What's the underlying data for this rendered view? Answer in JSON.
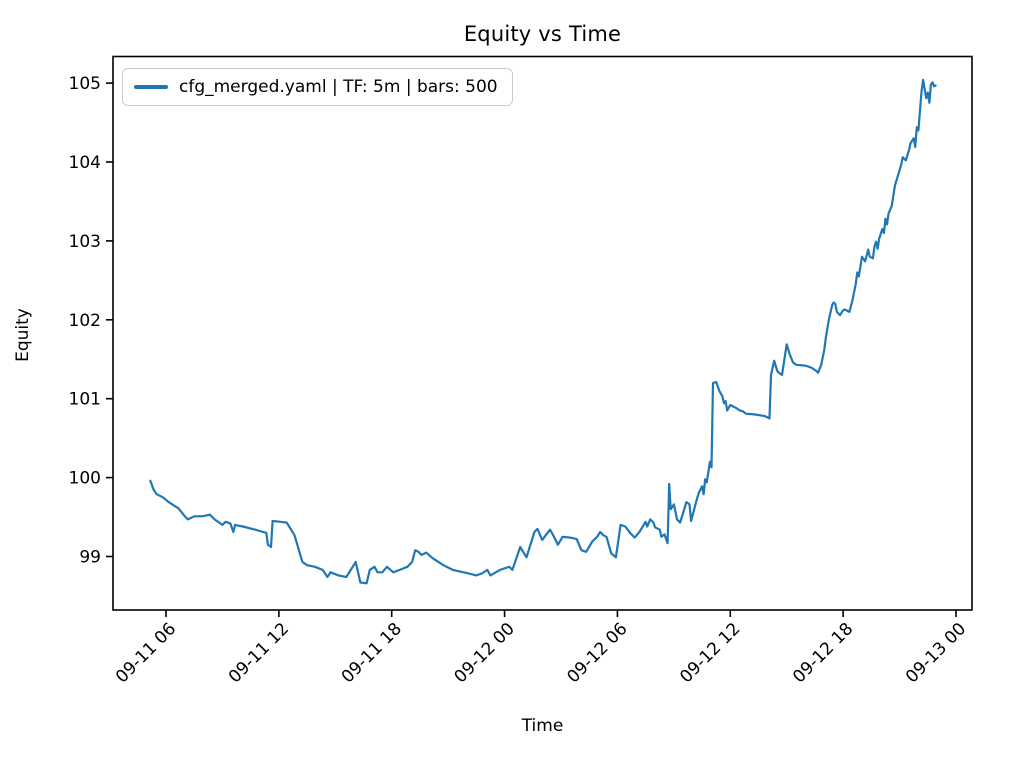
{
  "figure": {
    "title": "Equity vs Time",
    "x_label": "Time",
    "y_label": "Equity"
  },
  "legend": {
    "label": "cfg_merged.yaml | TF: 5m | bars: 500",
    "config_file": "cfg_merged.yaml",
    "timeframe": "5m",
    "bars": 500
  },
  "colors": {
    "line": "#1f77b4",
    "spine": "#000000",
    "tick_text": "#000000",
    "legend_border": "#cccccc",
    "background": "#ffffff"
  },
  "chart_data": {
    "type": "line",
    "title": "Equity vs Time",
    "xlabel": "Time",
    "ylabel": "Equity",
    "grid": false,
    "legend_position": "upper left",
    "series_name": "cfg_merged.yaml | TF: 5m | bars: 500",
    "y_ticks": [
      99,
      100,
      101,
      102,
      103,
      104,
      105
    ],
    "ylim": [
      98.32,
      105.34
    ],
    "x_tick_labels": [
      "09-11 06",
      "09-11 12",
      "09-11 18",
      "09-12 00",
      "09-12 06",
      "09-12 12",
      "09-12 18",
      "09-13 00"
    ],
    "x_tick_hours": [
      6,
      12,
      18,
      24,
      30,
      36,
      42,
      48
    ],
    "xlim_hours": [
      3.18,
      48.82
    ],
    "x_tick_rotation_deg": 45,
    "points": [
      [
        "09-11 05:10",
        99.96
      ],
      [
        "09-11 05:20",
        99.85
      ],
      [
        "09-11 05:30",
        99.79
      ],
      [
        "09-11 05:50",
        99.75
      ],
      [
        "09-11 06:05",
        99.7
      ],
      [
        "09-11 06:20",
        99.66
      ],
      [
        "09-11 06:40",
        99.61
      ],
      [
        "09-11 06:50",
        99.56
      ],
      [
        "09-11 07:00",
        99.51
      ],
      [
        "09-11 07:10",
        99.47
      ],
      [
        "09-11 07:30",
        99.51
      ],
      [
        "09-11 07:55",
        99.51
      ],
      [
        "09-11 08:20",
        99.53
      ],
      [
        "09-11 08:35",
        99.47
      ],
      [
        "09-11 09:00",
        99.4
      ],
      [
        "09-11 09:10",
        99.44
      ],
      [
        "09-11 09:25",
        99.42
      ],
      [
        "09-11 09:35",
        99.31
      ],
      [
        "09-11 09:40",
        99.4
      ],
      [
        "09-11 10:05",
        99.38
      ],
      [
        "09-11 10:45",
        99.34
      ],
      [
        "09-11 11:10",
        99.31
      ],
      [
        "09-11 11:20",
        99.3
      ],
      [
        "09-11 11:25",
        99.15
      ],
      [
        "09-11 11:35",
        99.12
      ],
      [
        "09-11 11:40",
        99.45
      ],
      [
        "09-11 12:05",
        99.44
      ],
      [
        "09-11 12:25",
        99.43
      ],
      [
        "09-11 12:50",
        99.27
      ],
      [
        "09-11 13:15",
        98.93
      ],
      [
        "09-11 13:30",
        98.89
      ],
      [
        "09-11 13:55",
        98.87
      ],
      [
        "09-11 14:20",
        98.83
      ],
      [
        "09-11 14:35",
        98.74
      ],
      [
        "09-11 14:45",
        98.8
      ],
      [
        "09-11 15:10",
        98.76
      ],
      [
        "09-11 15:35",
        98.74
      ],
      [
        "09-11 16:05",
        98.93
      ],
      [
        "09-11 16:20",
        98.67
      ],
      [
        "09-11 16:40",
        98.66
      ],
      [
        "09-11 16:50",
        98.83
      ],
      [
        "09-11 17:05",
        98.87
      ],
      [
        "09-11 17:15",
        98.8
      ],
      [
        "09-11 17:30",
        98.8
      ],
      [
        "09-11 17:45",
        98.87
      ],
      [
        "09-11 18:05",
        98.8
      ],
      [
        "09-11 18:25",
        98.83
      ],
      [
        "09-11 18:50",
        98.87
      ],
      [
        "09-11 19:05",
        98.93
      ],
      [
        "09-11 19:15",
        99.08
      ],
      [
        "09-11 19:25",
        99.06
      ],
      [
        "09-11 19:35",
        99.02
      ],
      [
        "09-11 19:50",
        99.05
      ],
      [
        "09-11 20:10",
        98.98
      ],
      [
        "09-11 20:45",
        98.89
      ],
      [
        "09-11 21:15",
        98.83
      ],
      [
        "09-11 22:00",
        98.79
      ],
      [
        "09-11 22:30",
        98.76
      ],
      [
        "09-11 22:50",
        98.79
      ],
      [
        "09-11 23:05",
        98.83
      ],
      [
        "09-11 23:15",
        98.76
      ],
      [
        "09-11 23:45",
        98.83
      ],
      [
        "09-12 00:15",
        98.87
      ],
      [
        "09-12 00:25",
        98.83
      ],
      [
        "09-12 00:50",
        99.12
      ],
      [
        "09-12 01:10",
        98.99
      ],
      [
        "09-12 01:35",
        99.31
      ],
      [
        "09-12 01:45",
        99.35
      ],
      [
        "09-12 02:00",
        99.21
      ],
      [
        "09-12 02:25",
        99.34
      ],
      [
        "09-12 02:35",
        99.27
      ],
      [
        "09-12 02:50",
        99.15
      ],
      [
        "09-12 03:05",
        99.25
      ],
      [
        "09-12 03:30",
        99.24
      ],
      [
        "09-12 03:50",
        99.22
      ],
      [
        "09-12 04:05",
        99.08
      ],
      [
        "09-12 04:20",
        99.06
      ],
      [
        "09-12 04:40",
        99.19
      ],
      [
        "09-12 04:55",
        99.25
      ],
      [
        "09-12 05:05",
        99.31
      ],
      [
        "09-12 05:15",
        99.27
      ],
      [
        "09-12 05:25",
        99.25
      ],
      [
        "09-12 05:40",
        99.04
      ],
      [
        "09-12 05:55",
        98.99
      ],
      [
        "09-12 06:10",
        99.4
      ],
      [
        "09-12 06:25",
        99.38
      ],
      [
        "09-12 06:40",
        99.3
      ],
      [
        "09-12 06:55",
        99.24
      ],
      [
        "09-12 07:10",
        99.31
      ],
      [
        "09-12 07:30",
        99.44
      ],
      [
        "09-12 07:35",
        99.38
      ],
      [
        "09-12 07:45",
        99.47
      ],
      [
        "09-12 07:55",
        99.43
      ],
      [
        "09-12 08:00",
        99.37
      ],
      [
        "09-12 08:15",
        99.34
      ],
      [
        "09-12 08:20",
        99.25
      ],
      [
        "09-12 08:30",
        99.28
      ],
      [
        "09-12 08:40",
        99.17
      ],
      [
        "09-12 08:45",
        99.92
      ],
      [
        "09-12 08:50",
        99.6
      ],
      [
        "09-12 09:00",
        99.66
      ],
      [
        "09-12 09:05",
        99.57
      ],
      [
        "09-12 09:10",
        99.47
      ],
      [
        "09-12 09:20",
        99.43
      ],
      [
        "09-12 09:30",
        99.56
      ],
      [
        "09-12 09:40",
        99.69
      ],
      [
        "09-12 09:50",
        99.66
      ],
      [
        "09-12 09:55",
        99.45
      ],
      [
        "09-12 10:05",
        99.6
      ],
      [
        "09-12 10:15",
        99.75
      ],
      [
        "09-12 10:20",
        99.81
      ],
      [
        "09-12 10:30",
        99.89
      ],
      [
        "09-12 10:35",
        99.79
      ],
      [
        "09-12 10:40",
        99.98
      ],
      [
        "09-12 10:45",
        99.94
      ],
      [
        "09-12 10:55",
        100.2
      ],
      [
        "09-12 11:00",
        100.13
      ],
      [
        "09-12 11:05",
        101.2
      ],
      [
        "09-12 11:15",
        101.21
      ],
      [
        "09-12 11:25",
        101.1
      ],
      [
        "09-12 11:35",
        101.03
      ],
      [
        "09-12 11:40",
        100.94
      ],
      [
        "09-12 11:45",
        100.97
      ],
      [
        "09-12 11:50",
        100.85
      ],
      [
        "09-12 12:00",
        100.92
      ],
      [
        "09-12 12:10",
        100.9
      ],
      [
        "09-12 12:20",
        100.88
      ],
      [
        "09-12 12:30",
        100.85
      ],
      [
        "09-12 12:40",
        100.84
      ],
      [
        "09-12 12:50",
        100.81
      ],
      [
        "09-12 13:20",
        100.8
      ],
      [
        "09-12 13:35",
        100.79
      ],
      [
        "09-12 13:50",
        100.78
      ],
      [
        "09-12 14:05",
        100.75
      ],
      [
        "09-12 14:10",
        101.3
      ],
      [
        "09-12 14:20",
        101.48
      ],
      [
        "09-12 14:30",
        101.35
      ],
      [
        "09-12 14:35",
        101.33
      ],
      [
        "09-12 14:45",
        101.3
      ],
      [
        "09-12 15:00",
        101.69
      ],
      [
        "09-12 15:10",
        101.56
      ],
      [
        "09-12 15:20",
        101.46
      ],
      [
        "09-12 15:30",
        101.43
      ],
      [
        "09-12 16:00",
        101.42
      ],
      [
        "09-12 16:20",
        101.39
      ],
      [
        "09-12 16:35",
        101.35
      ],
      [
        "09-12 16:40",
        101.33
      ],
      [
        "09-12 16:50",
        101.43
      ],
      [
        "09-12 17:00",
        101.62
      ],
      [
        "09-12 17:05",
        101.78
      ],
      [
        "09-12 17:10",
        101.9
      ],
      [
        "09-12 17:15",
        102.01
      ],
      [
        "09-12 17:25",
        102.19
      ],
      [
        "09-12 17:30",
        102.22
      ],
      [
        "09-12 17:35",
        102.2
      ],
      [
        "09-12 17:40",
        102.1
      ],
      [
        "09-12 17:50",
        102.06
      ],
      [
        "09-12 18:00",
        102.12
      ],
      [
        "09-12 18:05",
        102.13
      ],
      [
        "09-12 18:20",
        102.1
      ],
      [
        "09-12 18:30",
        102.25
      ],
      [
        "09-12 18:40",
        102.45
      ],
      [
        "09-12 18:45",
        102.6
      ],
      [
        "09-12 18:50",
        102.55
      ],
      [
        "09-12 19:00",
        102.8
      ],
      [
        "09-12 19:10",
        102.74
      ],
      [
        "09-12 19:20",
        102.89
      ],
      [
        "09-12 19:25",
        102.8
      ],
      [
        "09-12 19:35",
        102.78
      ],
      [
        "09-12 19:40",
        102.93
      ],
      [
        "09-12 19:45",
        102.99
      ],
      [
        "09-12 19:50",
        102.9
      ],
      [
        "09-12 19:55",
        103.03
      ],
      [
        "09-12 20:05",
        103.15
      ],
      [
        "09-12 20:10",
        103.1
      ],
      [
        "09-12 20:15",
        103.28
      ],
      [
        "09-12 20:20",
        103.21
      ],
      [
        "09-12 20:25",
        103.35
      ],
      [
        "09-12 20:35",
        103.44
      ],
      [
        "09-12 20:40",
        103.57
      ],
      [
        "09-12 20:45",
        103.7
      ],
      [
        "09-12 20:55",
        103.83
      ],
      [
        "09-12 21:05",
        103.96
      ],
      [
        "09-12 21:10",
        104.06
      ],
      [
        "09-12 21:20",
        104.02
      ],
      [
        "09-12 21:30",
        104.15
      ],
      [
        "09-12 21:35",
        104.24
      ],
      [
        "09-12 21:45",
        104.3
      ],
      [
        "09-12 21:50",
        104.19
      ],
      [
        "09-12 21:55",
        104.44
      ],
      [
        "09-12 22:00",
        104.4
      ],
      [
        "09-12 22:10",
        104.89
      ],
      [
        "09-12 22:15",
        105.04
      ],
      [
        "09-12 22:25",
        104.81
      ],
      [
        "09-12 22:30",
        104.88
      ],
      [
        "09-12 22:35",
        104.75
      ],
      [
        "09-12 22:40",
        104.98
      ],
      [
        "09-12 22:45",
        105.01
      ],
      [
        "09-12 22:50",
        104.96
      ],
      [
        "09-12 22:55",
        104.97
      ]
    ]
  }
}
